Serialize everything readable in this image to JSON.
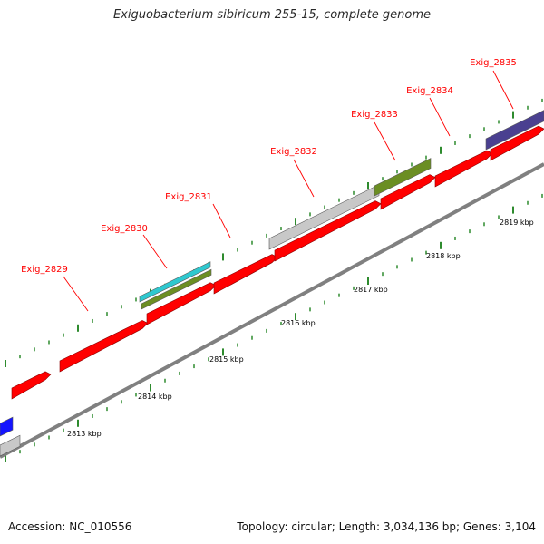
{
  "title": "Exiguobacterium sibiricum 255-15, complete genome",
  "footer": {
    "accession": "Accession: NC_010556",
    "stats": "Topology: circular; Length: 3,034,136 bp; Genes: 3,104"
  },
  "colors": {
    "background": "#ffffff",
    "cds": "#ff0000",
    "gene_label": "#ff0000",
    "tick": "#2e8b2e",
    "backbone": "#808080",
    "feature_cyan": "#2ec8cf",
    "feature_olive": "#6b8e23",
    "feature_gray": "#c8c8c8",
    "feature_navy": "#4a4090",
    "feature_blue": "#1414ff"
  },
  "gene_labels": [
    "Exig_2829",
    "Exig_2830",
    "Exig_2831",
    "Exig_2832",
    "Exig_2833",
    "Exig_2834",
    "Exig_2835"
  ],
  "kbp_labels": [
    "2813 kbp",
    "2814 kbp",
    "2815 kbp",
    "2816 kbp",
    "2817 kbp",
    "2818 kbp",
    "2819 kbp"
  ]
}
